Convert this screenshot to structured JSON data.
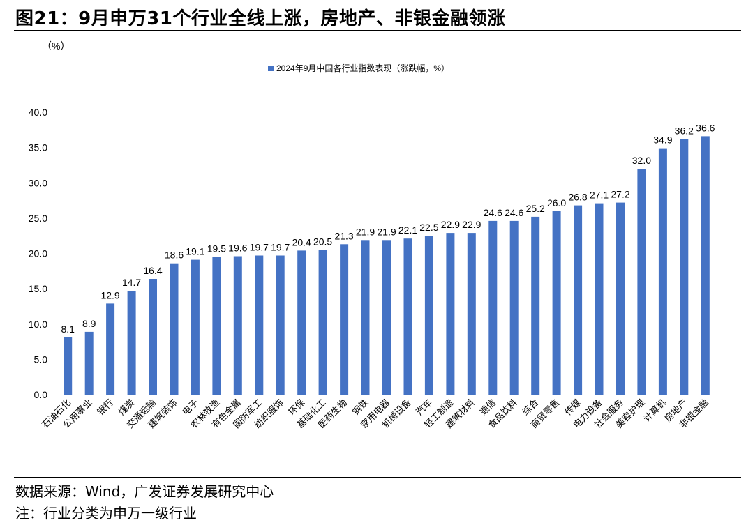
{
  "figure": {
    "title": "图21：9月申万31个行业全线上涨，房地产、非银金融领涨",
    "source": "数据来源：Wind，广发证券发展研究中心",
    "note": "注：行业分类为申万一级行业"
  },
  "chart_data": {
    "type": "bar",
    "ylabel": "（%）",
    "ylim": [
      0,
      40
    ],
    "yticks": [
      "0.0",
      "5.0",
      "10.0",
      "15.0",
      "20.0",
      "25.0",
      "30.0",
      "35.0",
      "40.0"
    ],
    "legend_position": "top-center",
    "grid": false,
    "bar_color": "#4472C4",
    "categories": [
      "石油石化",
      "公用事业",
      "银行",
      "煤炭",
      "交通运输",
      "建筑装饰",
      "电子",
      "农林牧渔",
      "有色金属",
      "国防军工",
      "纺织服饰",
      "环保",
      "基础化工",
      "医药生物",
      "钢铁",
      "家用电器",
      "机械设备",
      "汽车",
      "轻工制造",
      "建筑材料",
      "通信",
      "食品饮料",
      "综合",
      "商贸零售",
      "传媒",
      "电力设备",
      "社会服务",
      "美容护理",
      "计算机",
      "房地产",
      "非银金融"
    ],
    "series": [
      {
        "name": "2024年9月中国各行业指数表现（涨跌幅，%）",
        "values": [
          8.1,
          8.9,
          12.9,
          14.7,
          16.4,
          18.6,
          19.1,
          19.5,
          19.6,
          19.7,
          19.7,
          20.4,
          20.5,
          21.3,
          21.9,
          21.9,
          22.1,
          22.5,
          22.9,
          22.9,
          24.6,
          24.6,
          25.2,
          26.0,
          26.8,
          27.1,
          27.2,
          32.0,
          34.9,
          36.2,
          36.6
        ]
      }
    ]
  }
}
